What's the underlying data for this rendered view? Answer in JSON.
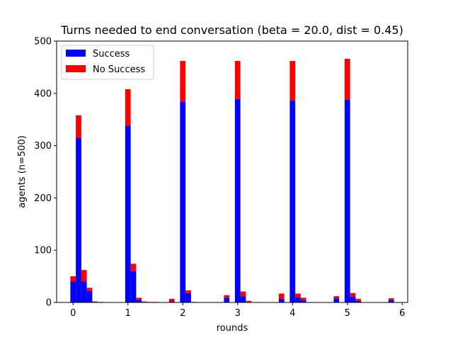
{
  "chart_data": {
    "type": "bar",
    "stacked": true,
    "title": "Turns needed to end conversation (beta = 20.0, dist = 0.45)",
    "xlabel": "rounds",
    "ylabel": "agents (n=500)",
    "xlim": [
      -0.3,
      6.1
    ],
    "ylim": [
      0,
      500
    ],
    "bar_width": 0.1,
    "xticks": [
      0,
      1,
      2,
      3,
      4,
      5,
      6
    ],
    "yticks": [
      0,
      100,
      200,
      300,
      400,
      500
    ],
    "grid": false,
    "legend": {
      "placement": "top-left"
    },
    "x": [
      0.0,
      0.1,
      0.2,
      0.3,
      0.4,
      0.5,
      1.0,
      1.1,
      1.2,
      1.3,
      1.4,
      1.5,
      1.8,
      2.0,
      2.1,
      2.2,
      2.8,
      3.0,
      3.1,
      3.2,
      3.8,
      4.0,
      4.1,
      4.2,
      4.8,
      5.0,
      5.1,
      5.2,
      5.8
    ],
    "series": [
      {
        "name": "Success",
        "color": "#0000ff",
        "values": [
          40,
          315,
          40,
          22,
          1,
          0,
          338,
          60,
          5,
          1,
          0,
          0,
          2,
          384,
          18,
          0,
          9,
          389,
          12,
          1,
          7,
          386,
          10,
          4,
          8,
          388,
          11,
          3,
          4
        ]
      },
      {
        "name": "No Success",
        "color": "#ff0000",
        "values": [
          10,
          43,
          22,
          6,
          1,
          1,
          70,
          14,
          4,
          1,
          1,
          1,
          5,
          78,
          5,
          1,
          5,
          73,
          9,
          2,
          10,
          76,
          7,
          5,
          4,
          78,
          7,
          4,
          4
        ]
      }
    ]
  }
}
